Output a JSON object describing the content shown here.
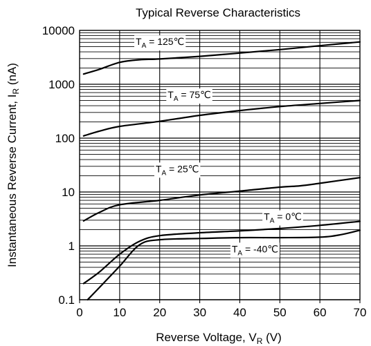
{
  "chart_data": {
    "type": "line",
    "title": "Typical Reverse Characteristics",
    "xlabel": {
      "main": "Reverse Voltage, V",
      "sub": "R",
      "unit": " (V)"
    },
    "ylabel": {
      "main": "Instantaneous Reverse Current, I",
      "sub": "R",
      "unit": " (nA)"
    },
    "xlim": [
      0,
      70
    ],
    "ylim": [
      0.1,
      10000
    ],
    "y_scale": "log",
    "x_ticks": [
      "0",
      "10",
      "20",
      "30",
      "40",
      "50",
      "60",
      "70"
    ],
    "y_ticks": [
      "0.1",
      "1",
      "10",
      "100",
      "1000",
      "10000"
    ],
    "grid": true,
    "line_color": "#000000",
    "series": [
      {
        "label_main": "T",
        "label_sub": "A",
        "label_value": " = 125℃",
        "x": [
          1,
          5,
          10,
          15,
          20,
          30,
          40,
          50,
          60,
          70
        ],
        "y": [
          1550,
          1900,
          2550,
          2850,
          2950,
          3300,
          3800,
          4400,
          5200,
          6100
        ]
      },
      {
        "label_main": "T",
        "label_sub": "A",
        "label_value": " = 75℃",
        "x": [
          1,
          5,
          10,
          20,
          30,
          40,
          50,
          60,
          70
        ],
        "y": [
          110,
          135,
          165,
          205,
          265,
          325,
          385,
          440,
          500
        ]
      },
      {
        "label_main": "T",
        "label_sub": "A",
        "label_value": " = 25℃",
        "x": [
          1,
          5,
          10,
          20,
          30,
          40,
          50,
          55,
          60,
          70
        ],
        "y": [
          2.9,
          4.2,
          5.8,
          7.0,
          8.8,
          10.4,
          12.3,
          13.0,
          14.5,
          18.5
        ]
      },
      {
        "label_main": "T",
        "label_sub": "A",
        "label_value": " = 0℃",
        "x": [
          1,
          5,
          10,
          15,
          20,
          30,
          40,
          50,
          60,
          70
        ],
        "y": [
          0.2,
          0.33,
          0.7,
          1.22,
          1.55,
          1.75,
          1.9,
          2.1,
          2.4,
          2.85
        ]
      },
      {
        "label_main": "T",
        "label_sub": "A",
        "label_value": " = -40℃",
        "x": [
          2,
          5,
          10,
          15,
          20,
          30,
          40,
          50,
          60,
          65,
          70
        ],
        "y": [
          0.1,
          0.17,
          0.42,
          1.05,
          1.3,
          1.37,
          1.42,
          1.42,
          1.45,
          1.6,
          1.95
        ]
      }
    ]
  }
}
